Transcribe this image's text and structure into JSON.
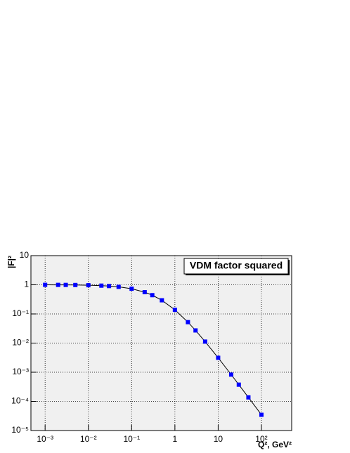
{
  "chart_data": {
    "type": "scatter",
    "title": "VDM factor squared",
    "x_label": "Q², GeV²",
    "y_label": "|F|²",
    "x": [
      0.001,
      0.002,
      0.003,
      0.005,
      0.01,
      0.02,
      0.03,
      0.05,
      0.1,
      0.2,
      0.3,
      0.5,
      1,
      2,
      3,
      5,
      10,
      20,
      30,
      50,
      100
    ],
    "series": [
      {
        "color": "#0000ff",
        "line_color": "#000000",
        "values": [
          0.9966,
          0.9933,
          0.99,
          0.9834,
          0.9672,
          0.9358,
          0.9059,
          0.8498,
          0.7322,
          0.5592,
          0.4409,
          0.2943,
          0.1385,
          0.0523,
          0.0272,
          0.01124,
          0.00313,
          0.000829,
          0.000375,
          0.000137,
          3.47e-05
        ]
      }
    ],
    "xlim": [
      0.00047,
      500
    ],
    "ylim": [
      1e-05,
      10
    ],
    "xlog": true,
    "ylog": true,
    "grid": true,
    "xticks": [
      {
        "value": 0.001,
        "label": "10⁻³"
      },
      {
        "value": 0.01,
        "label": "10⁻²"
      },
      {
        "value": 0.1,
        "label": "10⁻¹"
      },
      1,
      10,
      {
        "value": 100,
        "label": "10²"
      }
    ],
    "yticks": [
      {
        "value": 1e-05,
        "label": "10⁻⁵"
      },
      {
        "value": 0.0001,
        "label": "10⁻⁴"
      },
      {
        "value": 0.001,
        "label": "10⁻³"
      },
      {
        "value": 0.01,
        "label": "10⁻²"
      },
      {
        "value": 0.1,
        "label": "10⁻¹"
      },
      1,
      10
    ]
  }
}
